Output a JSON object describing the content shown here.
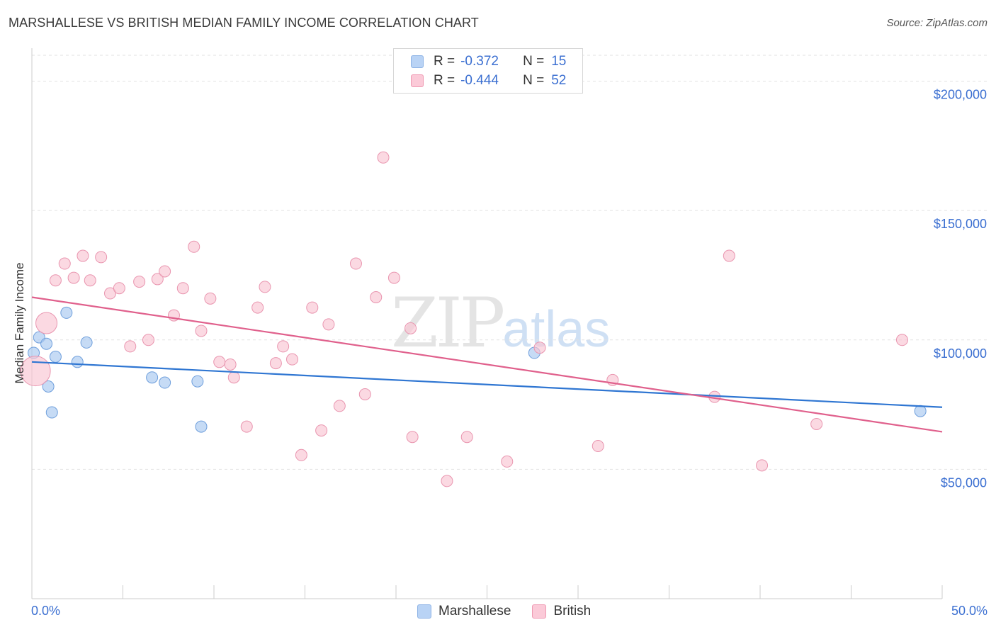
{
  "header": {
    "title": "MARSHALLESE VS BRITISH MEDIAN FAMILY INCOME CORRELATION CHART",
    "source": "Source: ZipAtlas.com"
  },
  "legend": {
    "rows": [
      {
        "r_label": "R =",
        "r_value": "-0.372",
        "n_label": "N =",
        "n_value": "15",
        "color": "#b9d3f5",
        "border": "#8fb4e6"
      },
      {
        "r_label": "R =",
        "r_value": "-0.444",
        "n_label": "N =",
        "n_value": "52",
        "color": "#fbcad8",
        "border": "#ef9ab3"
      }
    ],
    "bottom": [
      "Marshallese",
      "British"
    ]
  },
  "watermark": {
    "zip": "ZIP",
    "atlas": "atlas"
  },
  "chart_data": {
    "type": "scatter",
    "title": "MARSHALLESE VS BRITISH MEDIAN FAMILY INCOME CORRELATION CHART",
    "xlabel": "",
    "ylabel": "Median Family Income",
    "xlim": [
      0,
      50
    ],
    "ylim": [
      0,
      210000
    ],
    "x_tick_labels": [
      "0.0%",
      "50.0%"
    ],
    "y_ticks": [
      50000,
      100000,
      150000,
      200000
    ],
    "y_tick_labels": [
      "$50,000",
      "$100,000",
      "$150,000",
      "$200,000"
    ],
    "grid": true,
    "series": [
      {
        "name": "Marshallese",
        "color": "#a8c7f0",
        "stroke": "#6f9fdc",
        "line_color": "#2f76d2",
        "trend": {
          "x0": 0,
          "y0": 91500,
          "x1": 50,
          "y1": 74000
        },
        "points": [
          {
            "x": 0.1,
            "y": 95000
          },
          {
            "x": 0.4,
            "y": 101000
          },
          {
            "x": 0.8,
            "y": 98500
          },
          {
            "x": 0.9,
            "y": 82000
          },
          {
            "x": 1.1,
            "y": 72000
          },
          {
            "x": 1.3,
            "y": 93500
          },
          {
            "x": 1.9,
            "y": 110500
          },
          {
            "x": 2.5,
            "y": 91500
          },
          {
            "x": 3.0,
            "y": 99000
          },
          {
            "x": 6.6,
            "y": 85500
          },
          {
            "x": 7.3,
            "y": 83500
          },
          {
            "x": 9.1,
            "y": 84000
          },
          {
            "x": 9.3,
            "y": 66500
          },
          {
            "x": 27.6,
            "y": 95000
          },
          {
            "x": 48.8,
            "y": 72500
          }
        ]
      },
      {
        "name": "British",
        "color": "#f9c4d3",
        "stroke": "#e995af",
        "line_color": "#e0608c",
        "trend": {
          "x0": 0,
          "y0": 116500,
          "x1": 50,
          "y1": 64500
        },
        "points": [
          {
            "x": 0.2,
            "y": 88000,
            "big": 2
          },
          {
            "x": 0.8,
            "y": 106500,
            "big": 1
          },
          {
            "x": 1.3,
            "y": 123000
          },
          {
            "x": 1.8,
            "y": 129500
          },
          {
            "x": 2.3,
            "y": 124000
          },
          {
            "x": 2.8,
            "y": 132500
          },
          {
            "x": 3.2,
            "y": 123000
          },
          {
            "x": 3.8,
            "y": 132000
          },
          {
            "x": 4.3,
            "y": 118000
          },
          {
            "x": 4.8,
            "y": 120000
          },
          {
            "x": 5.4,
            "y": 97500
          },
          {
            "x": 5.9,
            "y": 122500
          },
          {
            "x": 6.4,
            "y": 100000
          },
          {
            "x": 6.9,
            "y": 123500
          },
          {
            "x": 7.3,
            "y": 126500
          },
          {
            "x": 7.8,
            "y": 109500
          },
          {
            "x": 8.3,
            "y": 120000
          },
          {
            "x": 8.9,
            "y": 136000
          },
          {
            "x": 9.3,
            "y": 103500
          },
          {
            "x": 9.8,
            "y": 116000
          },
          {
            "x": 10.3,
            "y": 91500
          },
          {
            "x": 10.9,
            "y": 90500
          },
          {
            "x": 11.1,
            "y": 85500
          },
          {
            "x": 11.8,
            "y": 66500
          },
          {
            "x": 12.4,
            "y": 112500
          },
          {
            "x": 12.8,
            "y": 120500
          },
          {
            "x": 13.4,
            "y": 91000
          },
          {
            "x": 13.8,
            "y": 97500
          },
          {
            "x": 14.3,
            "y": 92500
          },
          {
            "x": 14.8,
            "y": 55500
          },
          {
            "x": 15.4,
            "y": 112500
          },
          {
            "x": 15.9,
            "y": 65000
          },
          {
            "x": 16.3,
            "y": 106000
          },
          {
            "x": 16.9,
            "y": 74500
          },
          {
            "x": 17.8,
            "y": 129500
          },
          {
            "x": 18.3,
            "y": 79000
          },
          {
            "x": 18.9,
            "y": 116500
          },
          {
            "x": 19.3,
            "y": 170500
          },
          {
            "x": 19.9,
            "y": 124000
          },
          {
            "x": 20.8,
            "y": 104500
          },
          {
            "x": 20.9,
            "y": 62500
          },
          {
            "x": 22.8,
            "y": 45500
          },
          {
            "x": 23.9,
            "y": 62500
          },
          {
            "x": 26.1,
            "y": 53000
          },
          {
            "x": 27.9,
            "y": 97000
          },
          {
            "x": 31.1,
            "y": 59000
          },
          {
            "x": 31.9,
            "y": 84500
          },
          {
            "x": 37.5,
            "y": 78000
          },
          {
            "x": 38.3,
            "y": 132500
          },
          {
            "x": 40.1,
            "y": 51500
          },
          {
            "x": 43.1,
            "y": 67500
          },
          {
            "x": 47.8,
            "y": 100000
          }
        ]
      }
    ]
  }
}
